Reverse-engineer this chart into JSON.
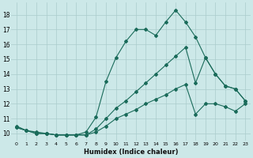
{
  "xlabel": "Humidex (Indice chaleur)",
  "bg_color": "#cce8e8",
  "grid_color": "#aacccc",
  "line_color": "#1a6b5a",
  "xlim": [
    -0.5,
    23.5
  ],
  "ylim": [
    9.5,
    18.8
  ],
  "xticks": [
    0,
    1,
    2,
    3,
    4,
    5,
    6,
    7,
    8,
    9,
    10,
    11,
    12,
    13,
    14,
    15,
    16,
    17,
    18,
    19,
    20,
    21,
    22,
    23
  ],
  "yticks": [
    10,
    11,
    12,
    13,
    14,
    15,
    16,
    17,
    18
  ],
  "line1_x": [
    0,
    1,
    2,
    3,
    4,
    5,
    6,
    7,
    8,
    9,
    10,
    11,
    12,
    13,
    14,
    15,
    16,
    17,
    18,
    19,
    20,
    21,
    22,
    23
  ],
  "line1_y": [
    10.5,
    10.2,
    10.1,
    10.0,
    9.9,
    9.9,
    9.9,
    10.1,
    11.1,
    13.5,
    15.1,
    16.2,
    17.0,
    17.0,
    16.6,
    17.5,
    18.3,
    17.5,
    16.5,
    15.1,
    14.0,
    13.2,
    13.0,
    12.2
  ],
  "line2_x": [
    0,
    1,
    2,
    3,
    4,
    5,
    6,
    7,
    8,
    9,
    10,
    11,
    12,
    13,
    14,
    15,
    16,
    17,
    18,
    19,
    20,
    21,
    22,
    23
  ],
  "line2_y": [
    10.4,
    10.2,
    10.0,
    10.0,
    9.9,
    9.9,
    9.9,
    9.9,
    10.3,
    11.0,
    11.7,
    12.2,
    12.8,
    13.4,
    14.0,
    14.6,
    15.2,
    15.8,
    13.4,
    15.1,
    14.0,
    13.2,
    13.0,
    12.2
  ],
  "line3_x": [
    0,
    1,
    2,
    3,
    4,
    5,
    6,
    7,
    8,
    9,
    10,
    11,
    12,
    13,
    14,
    15,
    16,
    17,
    18,
    19,
    20,
    21,
    22,
    23
  ],
  "line3_y": [
    10.4,
    10.2,
    10.0,
    10.0,
    9.9,
    9.9,
    9.9,
    9.9,
    10.1,
    10.5,
    11.0,
    11.3,
    11.6,
    12.0,
    12.3,
    12.6,
    13.0,
    13.3,
    11.3,
    12.0,
    12.0,
    11.8,
    11.5,
    12.0
  ]
}
